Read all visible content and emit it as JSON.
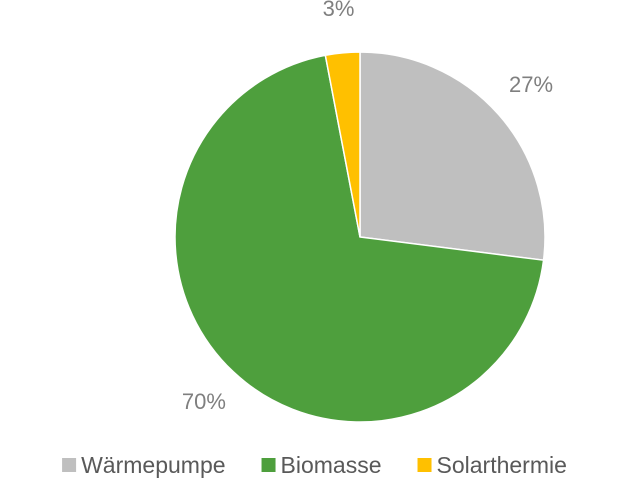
{
  "chart_data": {
    "type": "pie",
    "categories": [
      "Wärmepumpe",
      "Biomasse",
      "Solarthermie"
    ],
    "values": [
      27,
      70,
      3
    ],
    "value_labels": [
      "27%",
      "70%",
      "3%"
    ],
    "colors": [
      "#bfbfbf",
      "#4e9f3d",
      "#ffc000"
    ],
    "legend": "bottom"
  }
}
